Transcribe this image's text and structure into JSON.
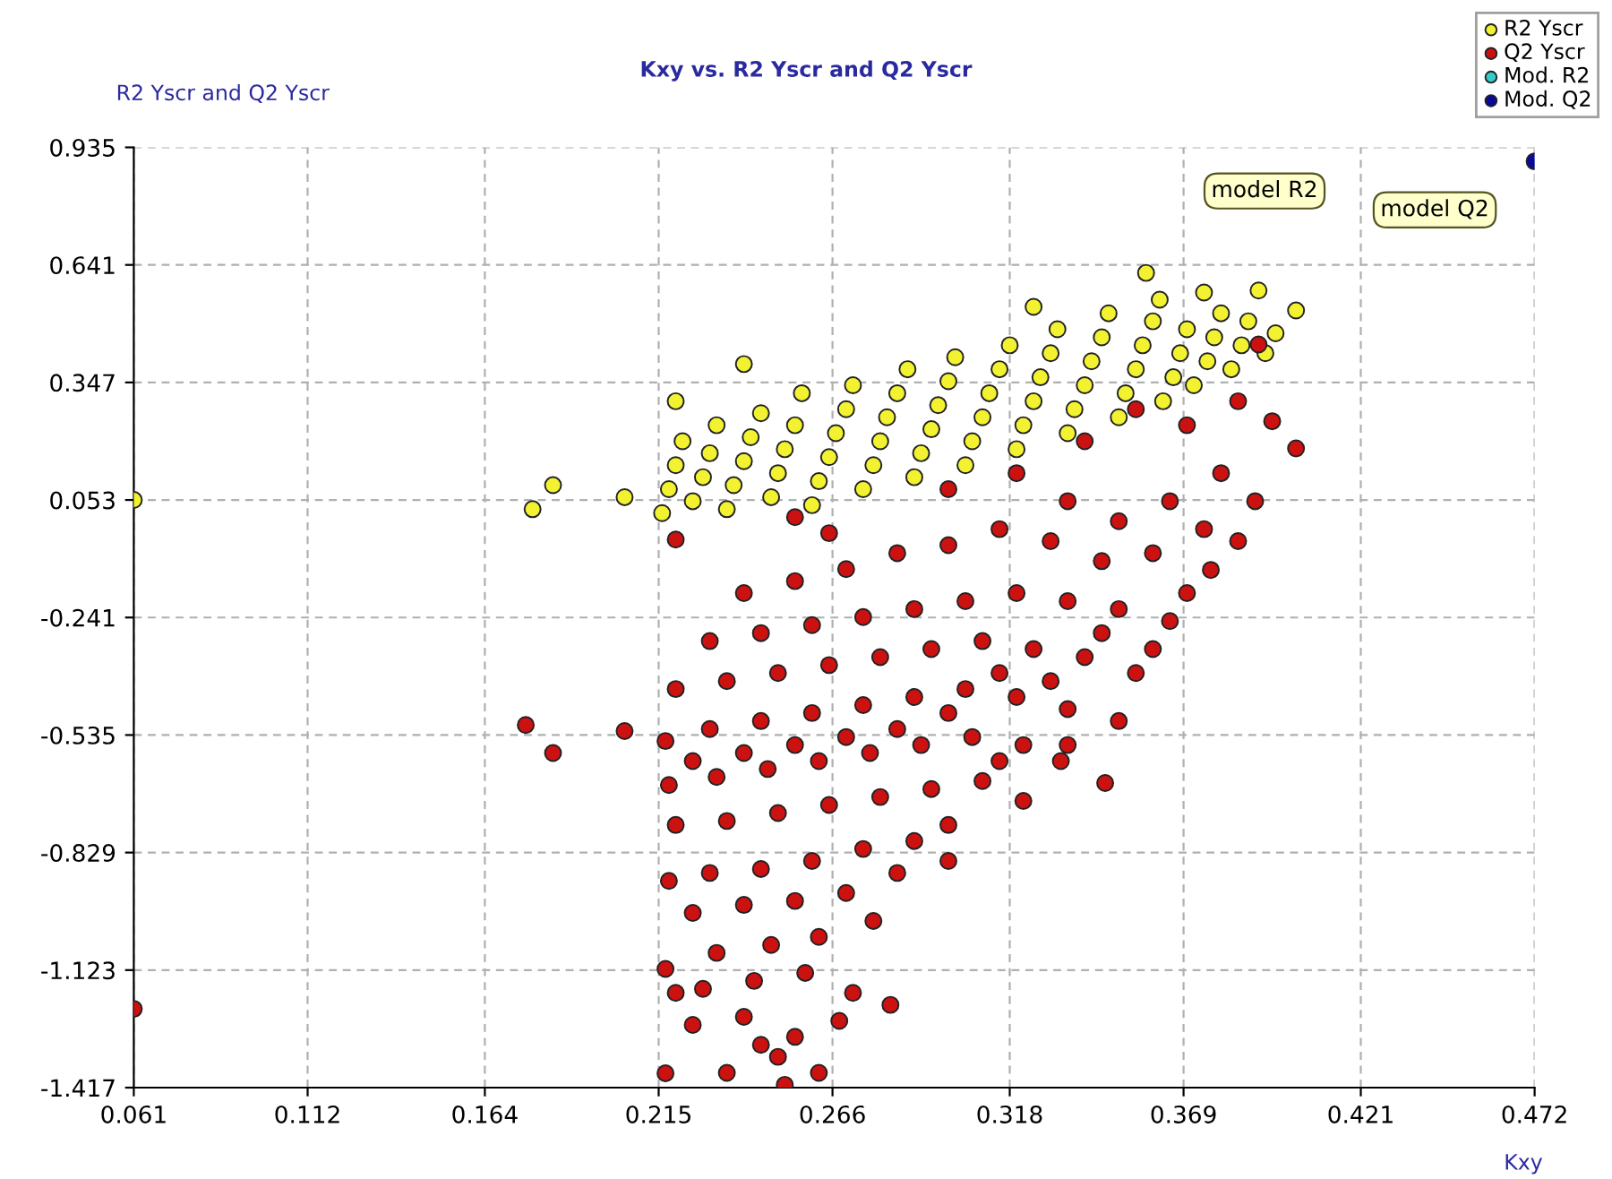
{
  "chart_data": {
    "type": "scatter",
    "title": "Kxy vs. R2 Yscr and Q2 Yscr",
    "xlabel": "Kxy",
    "ylabel": "R2 Yscr and Q2 Yscr",
    "xlim": [
      0.061,
      0.472
    ],
    "xticks": [
      0.061,
      0.112,
      0.164,
      0.215,
      0.266,
      0.318,
      0.369,
      0.421,
      0.472
    ],
    "ylim": [
      -1.417,
      0.935
    ],
    "yticks": [
      -1.417,
      -1.123,
      -0.829,
      -0.535,
      -0.241,
      0.053,
      0.347,
      0.641,
      0.935
    ],
    "grid": true,
    "legend": "top right",
    "marker": "circle",
    "annotations": [
      "model R2",
      {
        "text": "model Q2",
        "x": 0.472,
        "y": 0.9
      }
    ],
    "series": [
      {
        "name": "R2 Yscr",
        "color": "#f2f230",
        "x": [
          0.061,
          0.178,
          0.184,
          0.205,
          0.22,
          0.24,
          0.216,
          0.218,
          0.22,
          0.222,
          0.225,
          0.228,
          0.23,
          0.232,
          0.235,
          0.237,
          0.24,
          0.242,
          0.245,
          0.248,
          0.25,
          0.252,
          0.255,
          0.257,
          0.26,
          0.262,
          0.265,
          0.267,
          0.27,
          0.272,
          0.275,
          0.278,
          0.28,
          0.282,
          0.285,
          0.288,
          0.29,
          0.292,
          0.295,
          0.297,
          0.3,
          0.302,
          0.305,
          0.307,
          0.31,
          0.312,
          0.315,
          0.318,
          0.32,
          0.322,
          0.325,
          0.325,
          0.327,
          0.33,
          0.332,
          0.335,
          0.337,
          0.34,
          0.342,
          0.345,
          0.347,
          0.35,
          0.352,
          0.355,
          0.357,
          0.358,
          0.36,
          0.362,
          0.363,
          0.366,
          0.368,
          0.37,
          0.372,
          0.375,
          0.376,
          0.378,
          0.38,
          0.383,
          0.386,
          0.388,
          0.391,
          0.393,
          0.396,
          0.402
        ],
        "values": [
          0.053,
          0.03,
          0.09,
          0.06,
          0.3,
          0.393,
          0.02,
          0.08,
          0.14,
          0.2,
          0.05,
          0.11,
          0.17,
          0.24,
          0.03,
          0.09,
          0.15,
          0.21,
          0.27,
          0.06,
          0.12,
          0.18,
          0.24,
          0.32,
          0.04,
          0.1,
          0.16,
          0.22,
          0.28,
          0.34,
          0.08,
          0.14,
          0.2,
          0.26,
          0.32,
          0.38,
          0.11,
          0.17,
          0.23,
          0.29,
          0.35,
          0.41,
          0.14,
          0.2,
          0.26,
          0.32,
          0.38,
          0.44,
          0.18,
          0.24,
          0.3,
          0.536,
          0.36,
          0.42,
          0.48,
          0.22,
          0.28,
          0.34,
          0.4,
          0.46,
          0.52,
          0.26,
          0.32,
          0.38,
          0.44,
          0.621,
          0.5,
          0.554,
          0.3,
          0.36,
          0.42,
          0.48,
          0.34,
          0.572,
          0.4,
          0.46,
          0.52,
          0.38,
          0.44,
          0.5,
          0.577,
          0.42,
          0.47,
          0.527
        ]
      },
      {
        "name": "Q2 Yscr",
        "color": "#cc1111",
        "x": [
          0.061,
          0.176,
          0.184,
          0.205,
          0.391,
          0.402,
          0.252,
          0.217,
          0.377,
          0.346,
          0.255,
          0.265,
          0.3,
          0.32,
          0.34,
          0.355,
          0.37,
          0.385,
          0.395,
          0.38,
          0.365,
          0.35,
          0.335,
          0.39,
          0.375,
          0.36,
          0.345,
          0.33,
          0.315,
          0.3,
          0.285,
          0.27,
          0.255,
          0.24,
          0.22,
          0.23,
          0.245,
          0.26,
          0.275,
          0.29,
          0.305,
          0.32,
          0.335,
          0.35,
          0.365,
          0.22,
          0.235,
          0.25,
          0.265,
          0.28,
          0.295,
          0.31,
          0.325,
          0.34,
          0.355,
          0.217,
          0.23,
          0.245,
          0.26,
          0.275,
          0.29,
          0.305,
          0.32,
          0.335,
          0.35,
          0.218,
          0.232,
          0.247,
          0.262,
          0.277,
          0.292,
          0.307,
          0.322,
          0.333,
          0.22,
          0.235,
          0.25,
          0.265,
          0.28,
          0.295,
          0.31,
          0.322,
          0.3,
          0.29,
          0.275,
          0.26,
          0.245,
          0.23,
          0.218,
          0.225,
          0.24,
          0.255,
          0.27,
          0.285,
          0.3,
          0.278,
          0.262,
          0.248,
          0.232,
          0.217,
          0.228,
          0.243,
          0.258,
          0.272,
          0.225,
          0.24,
          0.255,
          0.268,
          0.283,
          0.235,
          0.25,
          0.262,
          0.245,
          0.22,
          0.385,
          0.37,
          0.36,
          0.345,
          0.33,
          0.315,
          0.3,
          0.285,
          0.27,
          0.255,
          0.24,
          0.225,
          0.315,
          0.335
        ],
        "values": [
          -1.22,
          -0.51,
          -0.58,
          -0.525,
          0.442,
          0.182,
          -1.41,
          -1.381,
          -0.122,
          -0.655,
          0.01,
          -0.03,
          0.08,
          0.12,
          0.2,
          0.28,
          0.24,
          0.3,
          0.25,
          0.12,
          0.05,
          0.0,
          0.05,
          0.05,
          -0.02,
          -0.08,
          -0.1,
          -0.05,
          -0.02,
          -0.06,
          -0.08,
          -0.12,
          -0.15,
          -0.18,
          -0.046,
          -0.3,
          -0.28,
          -0.26,
          -0.24,
          -0.22,
          -0.2,
          -0.18,
          -0.2,
          -0.22,
          -0.25,
          -0.42,
          -0.4,
          -0.38,
          -0.36,
          -0.34,
          -0.32,
          -0.3,
          -0.32,
          -0.34,
          -0.38,
          -0.55,
          -0.52,
          -0.5,
          -0.48,
          -0.46,
          -0.44,
          -0.42,
          -0.44,
          -0.47,
          -0.5,
          -0.66,
          -0.64,
          -0.62,
          -0.6,
          -0.58,
          -0.56,
          -0.54,
          -0.56,
          -0.6,
          -0.76,
          -0.75,
          -0.73,
          -0.71,
          -0.69,
          -0.67,
          -0.65,
          -0.7,
          -0.76,
          -0.8,
          -0.82,
          -0.85,
          -0.87,
          -0.88,
          -0.9,
          -0.98,
          -0.96,
          -0.95,
          -0.93,
          -0.88,
          -0.85,
          -1.0,
          -1.04,
          -1.06,
          -1.08,
          -1.12,
          -1.17,
          -1.15,
          -1.13,
          -1.18,
          -1.26,
          -1.24,
          -1.29,
          -1.25,
          -1.21,
          -1.38,
          -1.34,
          -1.38,
          -1.31,
          -1.18,
          -0.05,
          -0.18,
          -0.32,
          -0.28,
          -0.4,
          -0.38,
          -0.48,
          -0.52,
          -0.54,
          -0.56,
          -0.58,
          -0.6,
          -0.6,
          -0.56
        ]
      },
      {
        "name": "Mod. R2",
        "color": "#33cccc",
        "values": [
          null
        ]
      },
      {
        "name": "Mod. Q2",
        "color": "#0a0a9a",
        "x": [
          0.472
        ],
        "values": [
          0.9
        ]
      }
    ]
  }
}
